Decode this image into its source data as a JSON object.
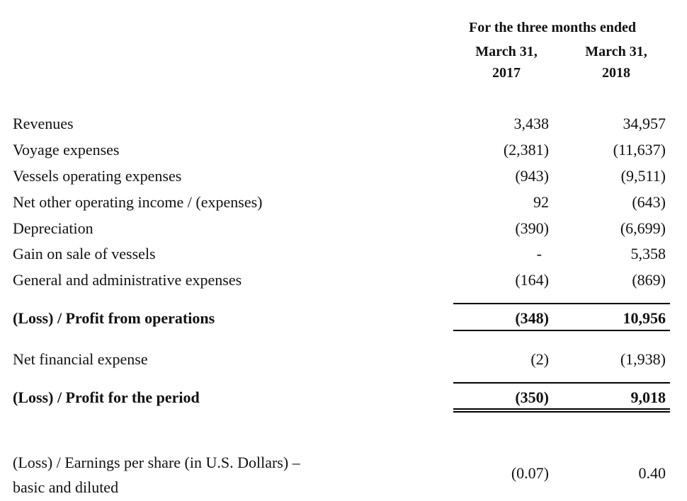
{
  "header": {
    "period": "For the three months ended",
    "col1_date": "March 31,",
    "col1_year": "2017",
    "col2_date": "March 31,",
    "col2_year": "2018"
  },
  "rows": [
    {
      "label": "Revenues",
      "v2017": "3,438",
      "v2018": "34,957"
    },
    {
      "label": "Voyage expenses",
      "v2017": "(2,381)",
      "v2018": "(11,637)"
    },
    {
      "label": "Vessels operating expenses",
      "v2017": "(943)",
      "v2018": "(9,511)"
    },
    {
      "label": "Net other operating income / (expenses)",
      "v2017": "92",
      "v2018": "(643)"
    },
    {
      "label": "Depreciation",
      "v2017": "(390)",
      "v2018": "(6,699)"
    },
    {
      "label": "Gain on sale of vessels",
      "v2017": "-",
      "v2018": "5,358"
    },
    {
      "label": "General and administrative expenses",
      "v2017": "(164)",
      "v2018": "(869)"
    }
  ],
  "operations": {
    "label": "(Loss) / Profit from operations",
    "v2017": "(348)",
    "v2018": "10,956"
  },
  "financial": {
    "label": "Net financial expense",
    "v2017": "(2)",
    "v2018": "(1,938)"
  },
  "period_result": {
    "label": "(Loss) / Profit for the period",
    "v2017": "(350)",
    "v2018": "9,018"
  },
  "eps": {
    "label_line1": "(Loss) / Earnings per share (in U.S. Dollars) –",
    "label_line2": "basic and diluted",
    "v2017": "(0.07)",
    "v2018": "0.40"
  }
}
